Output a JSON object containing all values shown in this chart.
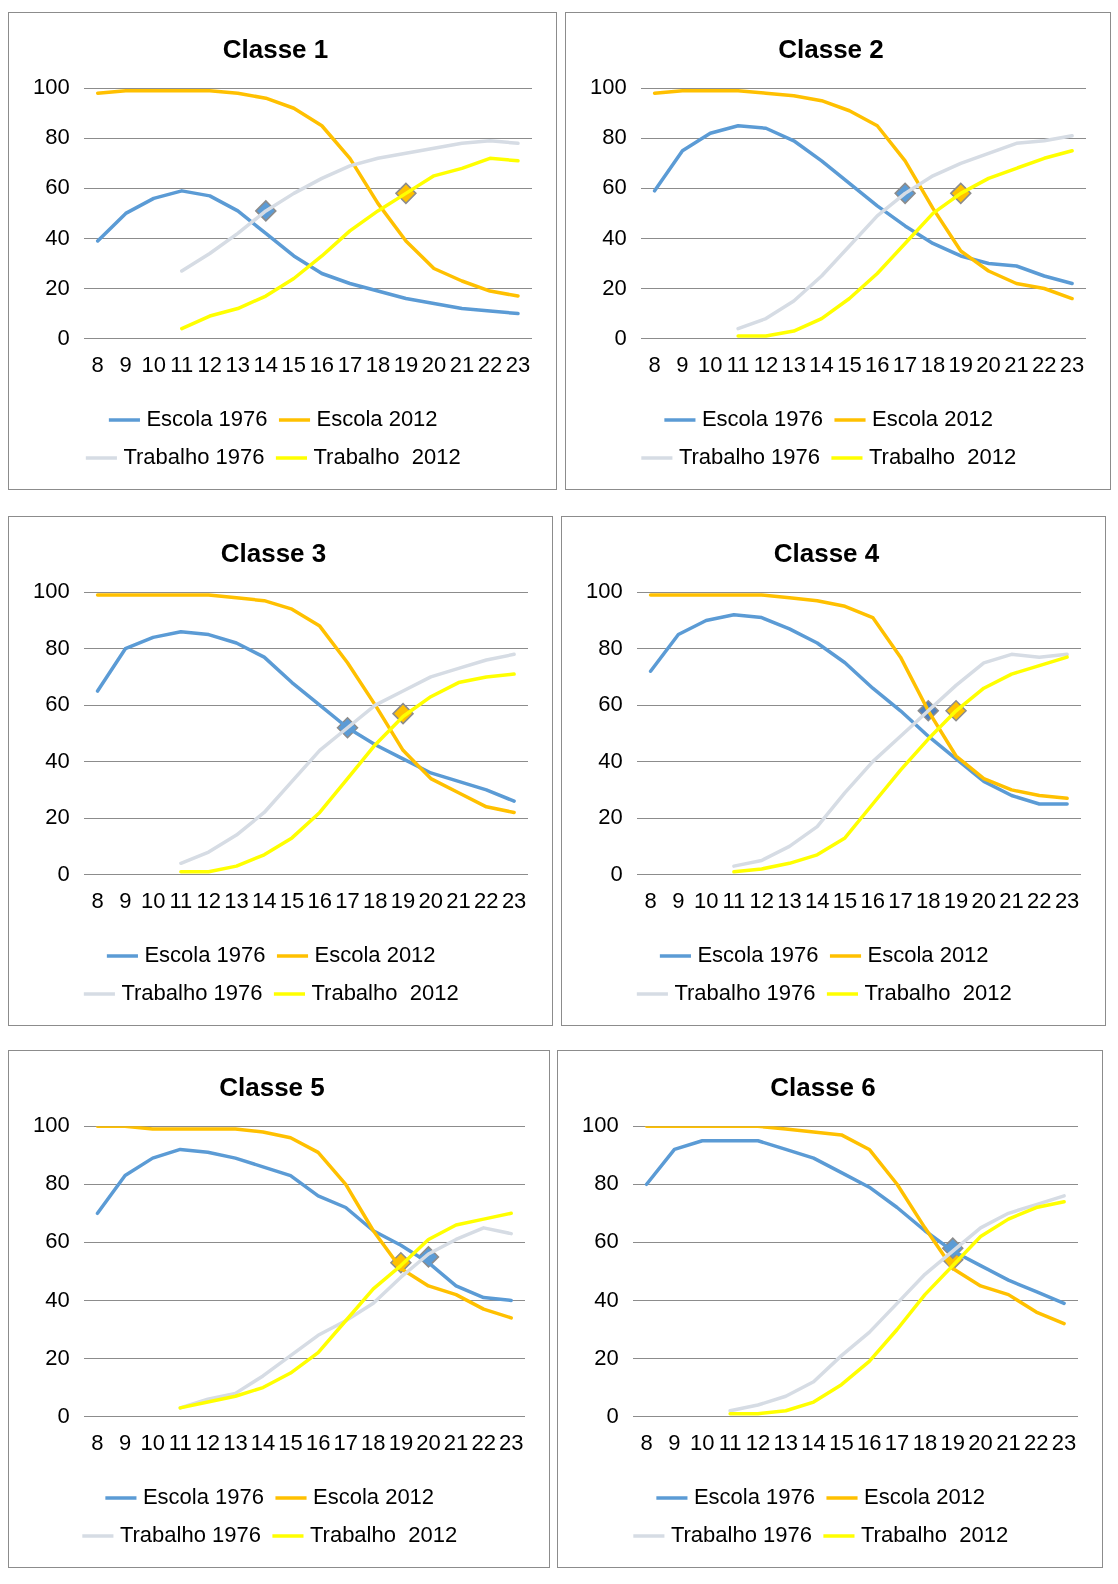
{
  "chart_data": [
    {
      "type": "line",
      "title": "Classe 1",
      "categories": [
        "8",
        "9",
        "10",
        "11",
        "12",
        "13",
        "14",
        "15",
        "16",
        "17",
        "18",
        "19",
        "20",
        "21",
        "22",
        "23"
      ],
      "ylim": [
        0,
        100
      ],
      "yticks": [
        0,
        20,
        40,
        60,
        80,
        100
      ],
      "grid": "y",
      "legend": "bottom",
      "marker": "none",
      "series": [
        {
          "name": "Escola 1976",
          "color": "#5b9bd5",
          "values": [
            39,
            50,
            56,
            59,
            57,
            51,
            42,
            33,
            26,
            22,
            19,
            16,
            14,
            12,
            11,
            10
          ]
        },
        {
          "name": "Escola 2012",
          "color": "#ffc000",
          "values": [
            98,
            99,
            99,
            99,
            99,
            98,
            96,
            92,
            85,
            72,
            54,
            39,
            28,
            23,
            19,
            17
          ]
        },
        {
          "name": "Trabalho 1976",
          "color": "#d6dce4",
          "values": [
            null,
            null,
            null,
            27,
            34,
            42,
            51,
            58,
            64,
            69,
            72,
            74,
            76,
            78,
            79,
            78
          ]
        },
        {
          "name": "Trabalho  2012",
          "color": "#ffff00",
          "values": [
            null,
            null,
            null,
            4,
            9,
            12,
            17,
            24,
            33,
            43,
            51,
            58,
            65,
            68,
            72,
            71
          ]
        },
        {
          "type": "scatter",
          "marker": "diamond",
          "color": "#5b9bd5",
          "x": [
            "14"
          ],
          "values": [
            51
          ]
        },
        {
          "type": "scatter",
          "marker": "diamond",
          "color": "#ffc000",
          "x": [
            "19"
          ],
          "values": [
            58
          ]
        }
      ]
    },
    {
      "type": "line",
      "title": "Classe 2",
      "categories": [
        "8",
        "9",
        "10",
        "11",
        "12",
        "13",
        "14",
        "15",
        "16",
        "17",
        "18",
        "19",
        "20",
        "21",
        "22",
        "23"
      ],
      "ylim": [
        0,
        100
      ],
      "yticks": [
        0,
        20,
        40,
        60,
        80,
        100
      ],
      "grid": "y",
      "legend": "bottom",
      "marker": "none",
      "series": [
        {
          "name": "Escola 1976",
          "color": "#5b9bd5",
          "values": [
            59,
            75,
            82,
            85,
            84,
            79,
            71,
            62,
            53,
            45,
            38,
            33,
            30,
            29,
            25,
            22
          ]
        },
        {
          "name": "Escola 2012",
          "color": "#ffc000",
          "values": [
            98,
            99,
            99,
            99,
            98,
            97,
            95,
            91,
            85,
            71,
            52,
            35,
            27,
            22,
            20,
            16
          ]
        },
        {
          "name": "Trabalho 1976",
          "color": "#d6dce4",
          "values": [
            null,
            null,
            null,
            4,
            8,
            15,
            25,
            37,
            49,
            58,
            65,
            70,
            74,
            78,
            79,
            81
          ]
        },
        {
          "name": "Trabalho  2012",
          "color": "#ffff00",
          "values": [
            null,
            null,
            null,
            1,
            1,
            3,
            8,
            16,
            26,
            38,
            50,
            58,
            64,
            68,
            72,
            75
          ]
        },
        {
          "type": "scatter",
          "marker": "diamond",
          "color": "#5b9bd5",
          "x": [
            "17"
          ],
          "values": [
            58
          ]
        },
        {
          "type": "scatter",
          "marker": "diamond",
          "color": "#ffc000",
          "x": [
            "19"
          ],
          "values": [
            58
          ]
        }
      ]
    },
    {
      "type": "line",
      "title": "Classe 3",
      "categories": [
        "8",
        "9",
        "10",
        "11",
        "12",
        "13",
        "14",
        "15",
        "16",
        "17",
        "18",
        "19",
        "20",
        "21",
        "22",
        "23"
      ],
      "ylim": [
        0,
        100
      ],
      "yticks": [
        0,
        20,
        40,
        60,
        80,
        100
      ],
      "grid": "y",
      "legend": "bottom",
      "marker": "none",
      "series": [
        {
          "name": "Escola 1976",
          "color": "#5b9bd5",
          "values": [
            65,
            80,
            84,
            86,
            85,
            82,
            77,
            68,
            60,
            52,
            46,
            41,
            36,
            33,
            30,
            26
          ]
        },
        {
          "name": "Escola 2012",
          "color": "#ffc000",
          "values": [
            99,
            99,
            99,
            99,
            99,
            98,
            97,
            94,
            88,
            75,
            60,
            44,
            34,
            29,
            24,
            22
          ]
        },
        {
          "name": "Trabalho 1976",
          "color": "#d6dce4",
          "values": [
            null,
            null,
            null,
            4,
            8,
            14,
            22,
            33,
            44,
            52,
            60,
            65,
            70,
            73,
            76,
            78
          ]
        },
        {
          "name": "Trabalho  2012",
          "color": "#ffff00",
          "values": [
            null,
            null,
            null,
            1,
            1,
            3,
            7,
            13,
            22,
            34,
            46,
            56,
            63,
            68,
            70,
            71
          ]
        },
        {
          "type": "scatter",
          "marker": "diamond",
          "color": "#5b9bd5",
          "x": [
            "17"
          ],
          "values": [
            52
          ]
        },
        {
          "type": "scatter",
          "marker": "diamond",
          "color": "#ffc000",
          "x": [
            "19"
          ],
          "values": [
            57
          ]
        }
      ]
    },
    {
      "type": "line",
      "title": "Classe 4",
      "categories": [
        "8",
        "9",
        "10",
        "11",
        "12",
        "13",
        "14",
        "15",
        "16",
        "17",
        "18",
        "19",
        "20",
        "21",
        "22",
        "23"
      ],
      "ylim": [
        0,
        100
      ],
      "yticks": [
        0,
        20,
        40,
        60,
        80,
        100
      ],
      "grid": "y",
      "legend": "bottom",
      "marker": "none",
      "series": [
        {
          "name": "Escola 1976",
          "color": "#5b9bd5",
          "values": [
            72,
            85,
            90,
            92,
            91,
            87,
            82,
            75,
            66,
            58,
            49,
            41,
            33,
            28,
            25,
            25
          ]
        },
        {
          "name": "Escola 2012",
          "color": "#ffc000",
          "values": [
            99,
            99,
            99,
            99,
            99,
            98,
            97,
            95,
            91,
            77,
            58,
            42,
            34,
            30,
            28,
            27
          ]
        },
        {
          "name": "Trabalho 1976",
          "color": "#d6dce4",
          "values": [
            null,
            null,
            null,
            3,
            5,
            10,
            17,
            29,
            40,
            49,
            58,
            67,
            75,
            78,
            77,
            78
          ]
        },
        {
          "name": "Trabalho  2012",
          "color": "#ffff00",
          "values": [
            null,
            null,
            null,
            1,
            2,
            4,
            7,
            13,
            25,
            37,
            48,
            58,
            66,
            71,
            74,
            77
          ]
        },
        {
          "type": "scatter",
          "marker": "diamond",
          "color": "#4f81bd",
          "x": [
            "18"
          ],
          "values": [
            58
          ]
        },
        {
          "type": "scatter",
          "marker": "diamond",
          "color": "#ffc000",
          "x": [
            "19"
          ],
          "values": [
            58
          ]
        }
      ]
    },
    {
      "type": "line",
      "title": "Classe 5",
      "categories": [
        "8",
        "9",
        "10",
        "11",
        "12",
        "13",
        "14",
        "15",
        "16",
        "17",
        "18",
        "19",
        "20",
        "21",
        "22",
        "23"
      ],
      "ylim": [
        0,
        100
      ],
      "yticks": [
        0,
        20,
        40,
        60,
        80,
        100
      ],
      "grid": "y",
      "legend": "bottom",
      "marker": "none",
      "series": [
        {
          "name": "Escola 1976",
          "color": "#5b9bd5",
          "values": [
            70,
            83,
            89,
            92,
            91,
            89,
            86,
            83,
            76,
            72,
            64,
            59,
            53,
            45,
            41,
            40
          ]
        },
        {
          "name": "Escola 2012",
          "color": "#ffc000",
          "values": [
            100,
            100,
            99,
            99,
            99,
            99,
            98,
            96,
            91,
            80,
            64,
            51,
            45,
            42,
            37,
            34
          ]
        },
        {
          "name": "Trabalho 1976",
          "color": "#d6dce4",
          "values": [
            null,
            null,
            null,
            3,
            6,
            8,
            14,
            21,
            28,
            33,
            39,
            48,
            56,
            61,
            65,
            63
          ]
        },
        {
          "name": "Trabalho  2012",
          "color": "#ffff00",
          "values": [
            null,
            null,
            null,
            3,
            5,
            7,
            10,
            15,
            22,
            33,
            44,
            52,
            61,
            66,
            68,
            70
          ]
        },
        {
          "type": "scatter",
          "marker": "diamond",
          "color": "#ffc000",
          "x": [
            "19"
          ],
          "values": [
            53
          ]
        },
        {
          "type": "scatter",
          "marker": "diamond",
          "color": "#5b9bd5",
          "x": [
            "20"
          ],
          "values": [
            55
          ]
        }
      ]
    },
    {
      "type": "line",
      "title": "Classe 6",
      "categories": [
        "8",
        "9",
        "10",
        "11",
        "12",
        "13",
        "14",
        "15",
        "16",
        "17",
        "18",
        "19",
        "20",
        "21",
        "22",
        "23"
      ],
      "ylim": [
        0,
        100
      ],
      "yticks": [
        0,
        20,
        40,
        60,
        80,
        100
      ],
      "grid": "y",
      "legend": "bottom",
      "marker": "none",
      "series": [
        {
          "name": "Escola 1976",
          "color": "#5b9bd5",
          "values": [
            80,
            92,
            95,
            95,
            95,
            92,
            89,
            84,
            79,
            72,
            64,
            57,
            52,
            47,
            43,
            39
          ]
        },
        {
          "name": "Escola 2012",
          "color": "#ffc000",
          "values": [
            100,
            100,
            100,
            100,
            100,
            99,
            98,
            97,
            92,
            80,
            65,
            51,
            45,
            42,
            36,
            32
          ]
        },
        {
          "name": "Trabalho 1976",
          "color": "#d6dce4",
          "values": [
            null,
            null,
            null,
            2,
            4,
            7,
            12,
            21,
            29,
            39,
            49,
            57,
            65,
            70,
            73,
            76
          ]
        },
        {
          "name": "Trabalho  2012",
          "color": "#ffff00",
          "values": [
            null,
            null,
            null,
            1,
            1,
            2,
            5,
            11,
            19,
            30,
            42,
            52,
            62,
            68,
            72,
            74
          ]
        },
        {
          "type": "scatter",
          "marker": "diamond",
          "color": "#5b9bd5",
          "x": [
            "19"
          ],
          "values": [
            58
          ]
        },
        {
          "type": "scatter",
          "marker": "diamond",
          "color": "#ffc000",
          "x": [
            "19"
          ],
          "values": [
            54
          ]
        }
      ]
    }
  ]
}
